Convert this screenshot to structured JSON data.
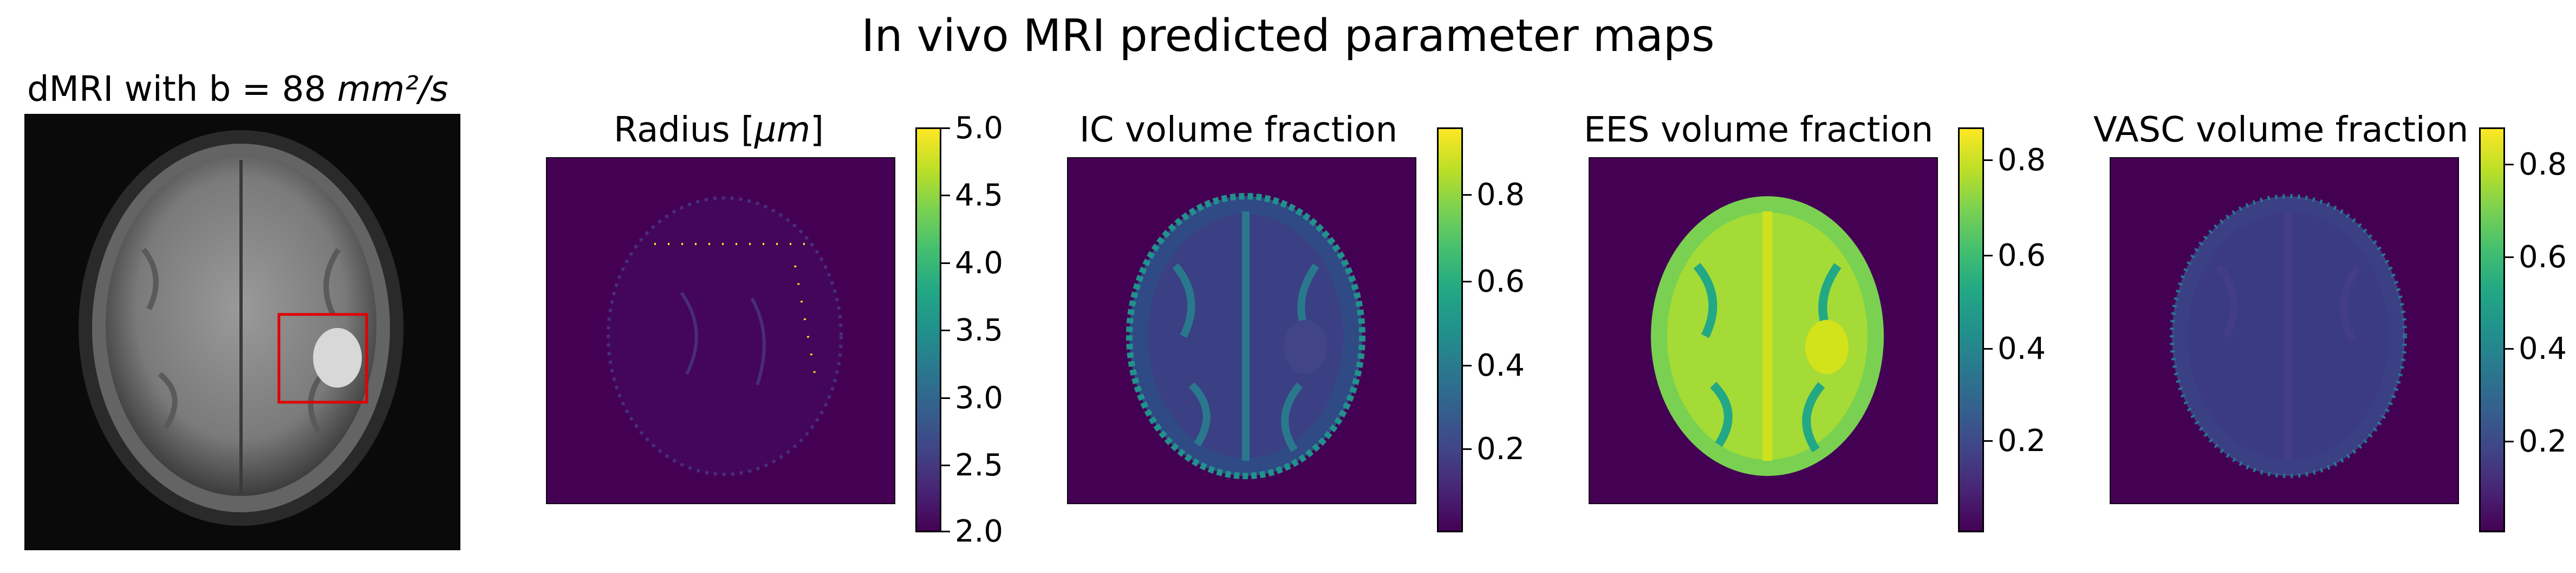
{
  "figure": {
    "title": "In vivo MRI predicted parameter maps"
  },
  "panels": [
    {
      "id": "dmri",
      "title_prefix": "dMRI with b = 88 ",
      "title_unit": "mm²/s",
      "image": "axial brain diffusion-weighted MRI, grayscale",
      "roi_box_color": "#e00000"
    },
    {
      "id": "radius",
      "title_prefix": "Radius [",
      "title_unit": "µm",
      "title_suffix": "]",
      "colormap": "viridis",
      "colorbar_ticks": [
        "5.0",
        "4.5",
        "4.0",
        "3.5",
        "3.0",
        "2.5",
        "2.0"
      ]
    },
    {
      "id": "ic",
      "title": "IC volume fraction",
      "colormap": "viridis",
      "colorbar_ticks": [
        "0.8",
        "0.6",
        "0.4",
        "0.2"
      ]
    },
    {
      "id": "ees",
      "title": "EES volume fraction",
      "colormap": "viridis",
      "colorbar_ticks": [
        "0.8",
        "0.6",
        "0.4",
        "0.2"
      ]
    },
    {
      "id": "vasc",
      "title": "VASC volume fraction",
      "colormap": "viridis",
      "colorbar_ticks": [
        "0.8",
        "0.6",
        "0.4",
        "0.2"
      ]
    }
  ],
  "colors": {
    "background_map": "#440154",
    "low": "#3b2f7a",
    "mid": "#21918c",
    "high": "#bddf26"
  }
}
